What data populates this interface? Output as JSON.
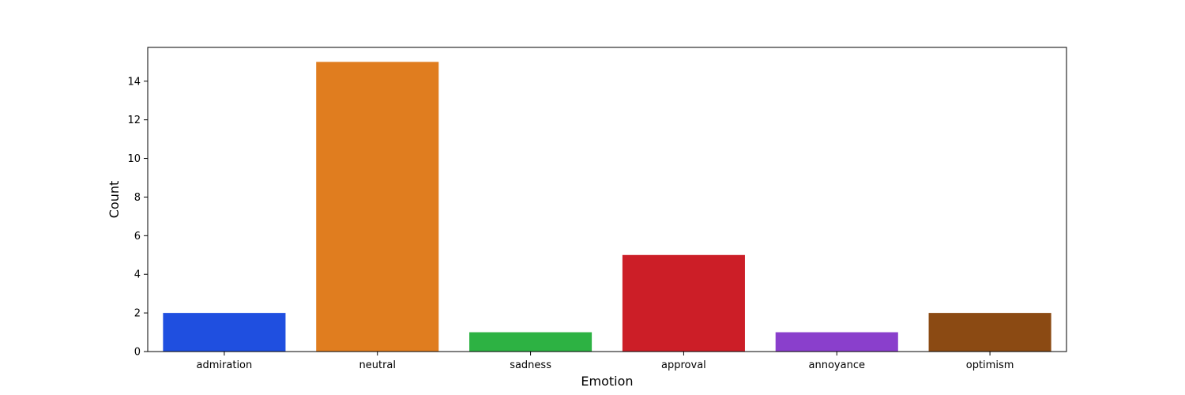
{
  "chart_data": {
    "type": "bar",
    "title": "",
    "xlabel": "Emotion",
    "ylabel": "Count",
    "categories": [
      "admiration",
      "neutral",
      "sadness",
      "approval",
      "annoyance",
      "optimism"
    ],
    "values": [
      2,
      15,
      1,
      5,
      1,
      2
    ],
    "colors": [
      "#1f4fe0",
      "#e07d1f",
      "#2db243",
      "#cc1e27",
      "#8a3fcc",
      "#8b4a13"
    ],
    "ylim": [
      0,
      15.75
    ],
    "yticks": [
      0,
      2,
      4,
      6,
      8,
      10,
      12,
      14
    ],
    "grid": false,
    "legend": "none"
  }
}
